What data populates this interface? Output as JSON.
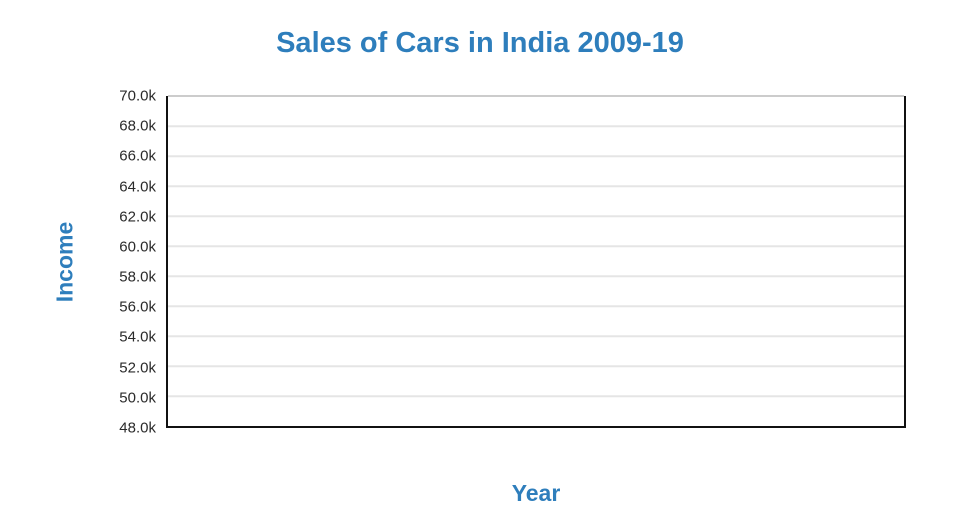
{
  "page": {
    "title": "Sales of Cars in India 2009-19"
  },
  "chart_data": {
    "type": "line",
    "title": "Sales of Cars in India 2009-19",
    "xlabel": "Year",
    "ylabel": "Income",
    "series": [],
    "x_tick_labels": [],
    "y_tick_labels": [
      "70.0k",
      "68.0k",
      "66.0k",
      "64.0k",
      "62.0k",
      "60.0k",
      "58.0k",
      "56.0k",
      "54.0k",
      "52.0k",
      "50.0k",
      "48.0k"
    ],
    "y_tick_values": [
      70000,
      68000,
      66000,
      64000,
      62000,
      60000,
      58000,
      56000,
      54000,
      52000,
      50000,
      48000
    ],
    "ylim": [
      48000,
      70000
    ],
    "grid": true,
    "legend": false,
    "plot_is_empty": true
  },
  "colors": {
    "accent_blue": "#2E7EBC",
    "tick_text": "#2a2a2a",
    "gridline": "#e5e5e5",
    "gridline_top": "#cccccc",
    "axis_line": "#111111",
    "background": "#ffffff"
  }
}
